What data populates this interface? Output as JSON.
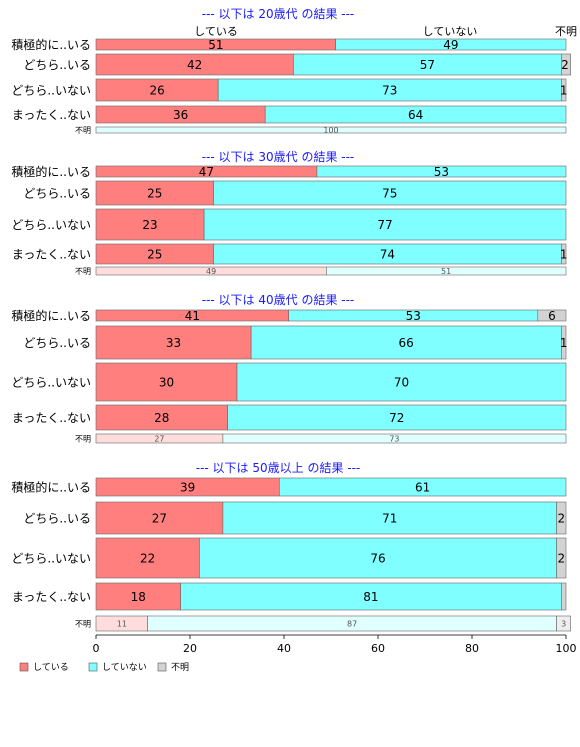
{
  "chart_data": {
    "type": "bar",
    "orientation": "horizontal",
    "stacked": true,
    "xlim": [
      0,
      100
    ],
    "x_ticks": [
      "0",
      "20",
      "40",
      "60",
      "80",
      "100"
    ],
    "grid": false,
    "colors": {
      "している": "#ff7f7f",
      "していない": "#7fffff",
      "不明": "#d3d3d3"
    },
    "column_labels": [
      "している",
      "していない",
      "不明"
    ],
    "legend": {
      "position": "bottom-left",
      "entries": [
        {
          "label": "している",
          "color": "#ff7f7f"
        },
        {
          "label": "していない",
          "color": "#7fffff"
        },
        {
          "label": "不明",
          "color": "#d3d3d3"
        }
      ]
    },
    "panels": [
      {
        "title": "--- 以下は 20歳代 の結果 ---",
        "rows": [
          {
            "label": "積極的に..いる",
            "values": [
              51,
              49,
              0
            ],
            "shown": [
              "51",
              "49",
              ""
            ]
          },
          {
            "label": "どちら..いる",
            "values": [
              42,
              57,
              2
            ],
            "shown": [
              "42",
              "57",
              "2"
            ]
          },
          {
            "label": "どちら..いない",
            "values": [
              26,
              73,
              1
            ],
            "shown": [
              "26",
              "73",
              "1"
            ]
          },
          {
            "label": "まったく..ない",
            "values": [
              36,
              64,
              0
            ],
            "shown": [
              "36",
              "64",
              ""
            ]
          },
          {
            "label": "不明",
            "values": [
              0,
              100,
              0
            ],
            "shown": [
              "",
              "100",
              ""
            ],
            "small": true
          }
        ]
      },
      {
        "title": "--- 以下は 30歳代 の結果 ---",
        "rows": [
          {
            "label": "積極的に..いる",
            "values": [
              47,
              53,
              0
            ],
            "shown": [
              "47",
              "53",
              ""
            ]
          },
          {
            "label": "どちら..いる",
            "values": [
              25,
              75,
              0
            ],
            "shown": [
              "25",
              "75",
              ""
            ]
          },
          {
            "label": "どちら..いない",
            "values": [
              23,
              77,
              0
            ],
            "shown": [
              "23",
              "77",
              ""
            ]
          },
          {
            "label": "まったく..ない",
            "values": [
              25,
              74,
              1
            ],
            "shown": [
              "25",
              "74",
              "1"
            ]
          },
          {
            "label": "不明",
            "values": [
              49,
              51,
              0
            ],
            "shown": [
              "49",
              "51",
              ""
            ],
            "small": true
          }
        ]
      },
      {
        "title": "--- 以下は 40歳代 の結果 ---",
        "rows": [
          {
            "label": "積極的に..いる",
            "values": [
              41,
              53,
              6
            ],
            "shown": [
              "41",
              "53",
              "6"
            ]
          },
          {
            "label": "どちら..いる",
            "values": [
              33,
              66,
              1
            ],
            "shown": [
              "33",
              "66",
              "1"
            ]
          },
          {
            "label": "どちら..いない",
            "values": [
              30,
              70,
              0
            ],
            "shown": [
              "30",
              "70",
              ""
            ]
          },
          {
            "label": "まったく..ない",
            "values": [
              28,
              72,
              0
            ],
            "shown": [
              "28",
              "72",
              ""
            ]
          },
          {
            "label": "不明",
            "values": [
              27,
              73,
              0
            ],
            "shown": [
              "27",
              "73",
              ""
            ],
            "small": true
          }
        ]
      },
      {
        "title": "--- 以下は 50歳以上 の結果 ---",
        "rows": [
          {
            "label": "積極的に..いる",
            "values": [
              39,
              61,
              0
            ],
            "shown": [
              "39",
              "61",
              ""
            ]
          },
          {
            "label": "どちら..いる",
            "values": [
              27,
              71,
              2
            ],
            "shown": [
              "27",
              "71",
              "2"
            ]
          },
          {
            "label": "どちら..いない",
            "values": [
              22,
              76,
              2
            ],
            "shown": [
              "22",
              "76",
              "2"
            ]
          },
          {
            "label": "まったく..ない",
            "values": [
              18,
              81,
              1
            ],
            "shown": [
              "18",
              "81",
              ""
            ]
          },
          {
            "label": "不明",
            "values": [
              11,
              87,
              3
            ],
            "shown": [
              "11",
              "87",
              "3"
            ],
            "small": true
          }
        ]
      }
    ]
  }
}
